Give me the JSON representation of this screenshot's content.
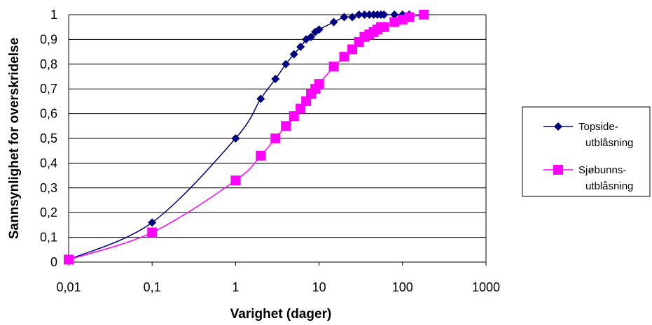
{
  "chart_data": {
    "type": "line",
    "xlabel": "Varighet (dager)",
    "ylabel": "Sannsynlighet for overskridelse",
    "x_scale": "log",
    "xlim": [
      0.01,
      1000
    ],
    "ylim": [
      0,
      1
    ],
    "x_ticks": [
      "0,01",
      "0,1",
      "1",
      "10",
      "100",
      "1000"
    ],
    "y_ticks": [
      "0",
      "0,1",
      "0,2",
      "0,3",
      "0,4",
      "0,5",
      "0,6",
      "0,7",
      "0,8",
      "0,9",
      "1"
    ],
    "grid": true,
    "legend_position": "right",
    "series": [
      {
        "name_lines": [
          "Topside-",
          "utblåsning"
        ],
        "color": "#000080",
        "marker": "diamond",
        "points": [
          [
            0.01,
            0.01
          ],
          [
            0.1,
            0.16
          ],
          [
            1,
            0.5
          ],
          [
            2,
            0.66
          ],
          [
            3,
            0.74
          ],
          [
            4,
            0.8
          ],
          [
            5,
            0.84
          ],
          [
            6,
            0.87
          ],
          [
            7,
            0.9
          ],
          [
            8,
            0.91
          ],
          [
            9,
            0.93
          ],
          [
            10,
            0.94
          ],
          [
            15,
            0.97
          ],
          [
            20,
            0.99
          ],
          [
            25,
            0.99
          ],
          [
            30,
            1.0
          ],
          [
            35,
            1.0
          ],
          [
            40,
            1.0
          ],
          [
            45,
            1.0
          ],
          [
            50,
            1.0
          ],
          [
            55,
            1.0
          ],
          [
            60,
            1.0
          ],
          [
            80,
            1.0
          ],
          [
            100,
            1.0
          ],
          [
            120,
            1.0
          ]
        ]
      },
      {
        "name_lines": [
          "Sjøbunns-",
          "utblåsning"
        ],
        "color": "#FF00FF",
        "marker": "square",
        "points": [
          [
            0.01,
            0.01
          ],
          [
            0.1,
            0.12
          ],
          [
            1,
            0.33
          ],
          [
            2,
            0.43
          ],
          [
            3,
            0.5
          ],
          [
            4,
            0.55
          ],
          [
            5,
            0.59
          ],
          [
            6,
            0.62
          ],
          [
            7,
            0.65
          ],
          [
            8,
            0.68
          ],
          [
            9,
            0.7
          ],
          [
            10,
            0.72
          ],
          [
            15,
            0.79
          ],
          [
            20,
            0.83
          ],
          [
            25,
            0.86
          ],
          [
            30,
            0.89
          ],
          [
            35,
            0.91
          ],
          [
            40,
            0.92
          ],
          [
            45,
            0.93
          ],
          [
            50,
            0.94
          ],
          [
            55,
            0.95
          ],
          [
            60,
            0.95
          ],
          [
            80,
            0.97
          ],
          [
            100,
            0.98
          ],
          [
            120,
            0.99
          ],
          [
            180,
            1.0
          ]
        ]
      }
    ]
  }
}
